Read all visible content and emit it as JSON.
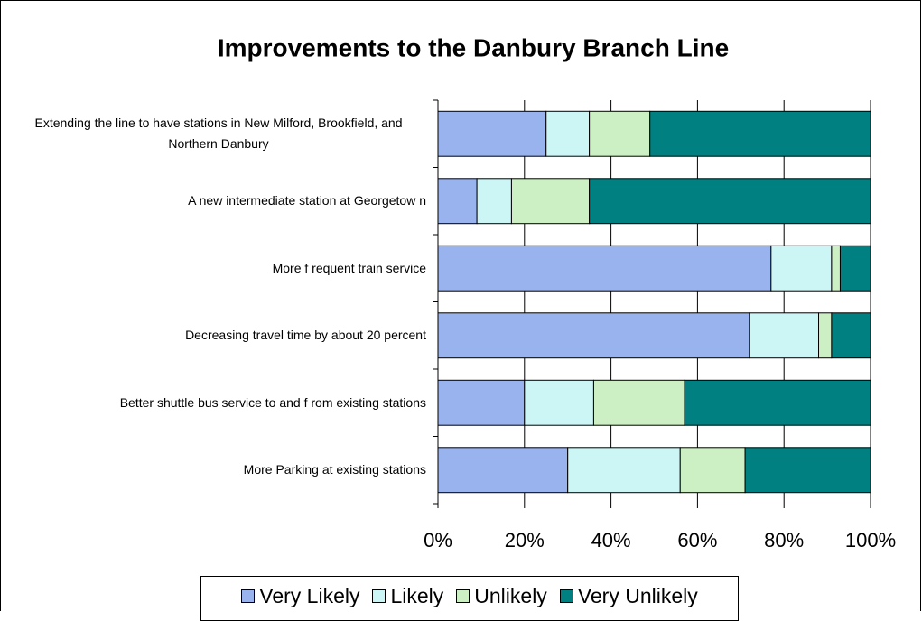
{
  "chart_data": {
    "type": "stacked-bar-horizontal",
    "title": "Improvements to the Danbury Branch Line",
    "categories": [
      "Extending the line to have stations in New Milford, Brookfield, and Northern Danbury",
      "A new  intermediate station at Georgetow n",
      "More f requent train service",
      "Decreasing travel time by about 20 percent",
      "Better shuttle bus service to and f rom existing stations",
      "More Parking at existing stations"
    ],
    "series": [
      {
        "name": "Very Likely",
        "color": "#99b3ee",
        "values": [
          25,
          9,
          77,
          72,
          20,
          30
        ]
      },
      {
        "name": "Likely",
        "color": "#ccf5f5",
        "values": [
          10,
          8,
          14,
          16,
          16,
          26
        ]
      },
      {
        "name": "Unlikely",
        "color": "#ccf0c4",
        "values": [
          14,
          18,
          2,
          3,
          21,
          15
        ]
      },
      {
        "name": "Very Unlikely",
        "color": "#008080",
        "values": [
          51,
          65,
          7,
          9,
          43,
          29
        ]
      }
    ],
    "xlim": [
      0,
      100
    ],
    "xticks": [
      {
        "value": 0,
        "label": "0%"
      },
      {
        "value": 20,
        "label": "20%"
      },
      {
        "value": 40,
        "label": "40%"
      },
      {
        "value": 60,
        "label": "60%"
      },
      {
        "value": 80,
        "label": "80%"
      },
      {
        "value": 100,
        "label": "100%"
      }
    ],
    "grid": true
  }
}
